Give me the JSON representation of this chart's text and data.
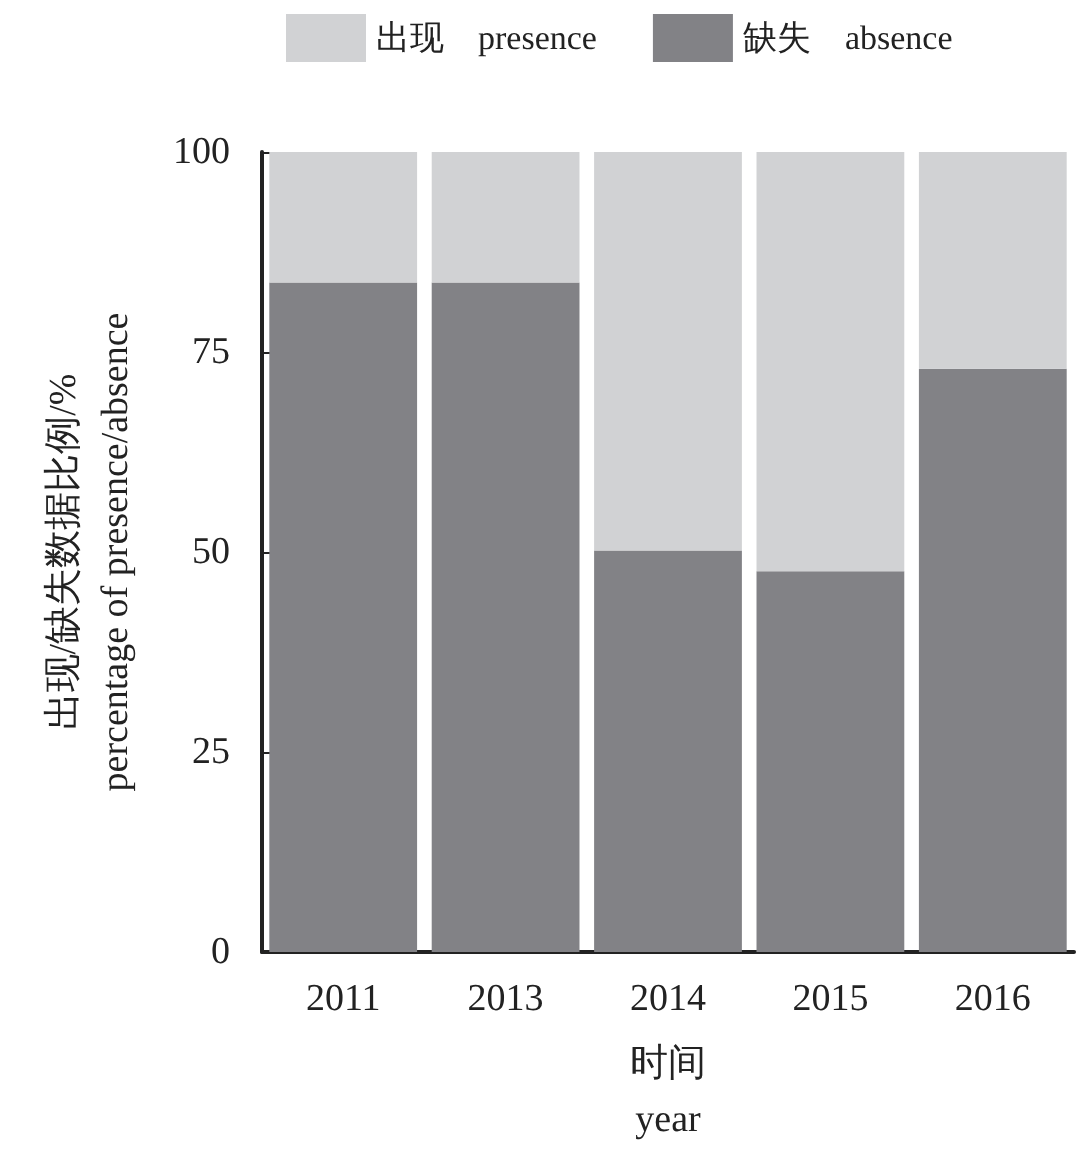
{
  "chart_data": {
    "type": "bar",
    "stacked": true,
    "categories": [
      "2011",
      "2013",
      "2014",
      "2015",
      "2016"
    ],
    "series": [
      {
        "name": "缺失　absence",
        "color": "#828286",
        "values": [
          83.7,
          83.7,
          50.2,
          47.6,
          72.9
        ]
      },
      {
        "name": "出现　presence",
        "color": "#d1d2d4",
        "values": [
          16.3,
          16.3,
          49.8,
          52.4,
          27.1
        ]
      }
    ],
    "legend": "top",
    "xlabel": "时间\nyear",
    "ylabel": "出现/缺失数据比例/%\npercentage of presence/absence",
    "ylim": [
      0,
      100
    ],
    "yticks": [
      0,
      25,
      50,
      75,
      100
    ],
    "grid": false
  }
}
